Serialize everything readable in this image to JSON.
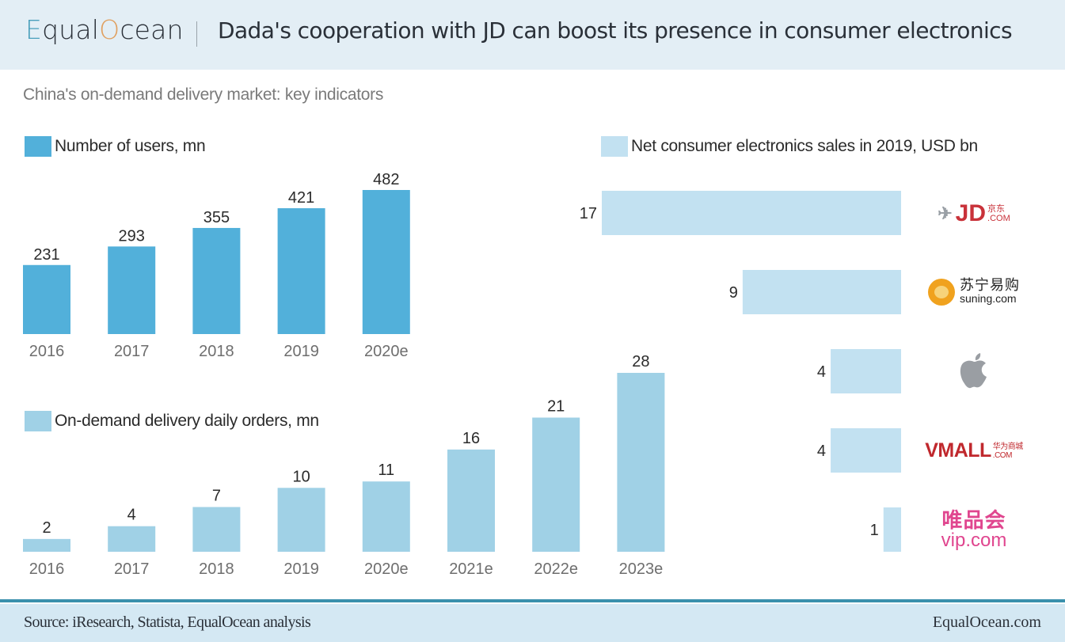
{
  "header": {
    "logo_prefix": "E",
    "logo_mid": "qual",
    "logo_o": "O",
    "logo_suffix": "cean",
    "title": "Dada's cooperation with JD can boost its presence in consumer electronics"
  },
  "subtitle": "China's on-demand delivery market: key indicators",
  "colors": {
    "users_bar": "#52b0da",
    "orders_bar": "#a0d1e6",
    "sales_bar": "#c2e1f1",
    "header_bg": "#e3eef5",
    "footer_bg": "#d4e8f3",
    "footer_line": "#3a90ac"
  },
  "chart_data": [
    {
      "type": "bar",
      "title": "Number of users, mn",
      "categories": [
        "2016",
        "2017",
        "2018",
        "2019",
        "2020e"
      ],
      "values": [
        231,
        293,
        355,
        421,
        482
      ],
      "xlabel": "",
      "ylabel": "",
      "legend": "top-left",
      "grid": false
    },
    {
      "type": "bar",
      "title": "On-demand delivery daily orders, mn",
      "categories": [
        "2016",
        "2017",
        "2018",
        "2019",
        "2020e",
        "2021e",
        "2022e",
        "2023e"
      ],
      "values": [
        2,
        4,
        7,
        10,
        11,
        16,
        21,
        28
      ],
      "xlabel": "",
      "ylabel": "",
      "legend": "left",
      "grid": false
    },
    {
      "type": "bar",
      "orientation": "horizontal",
      "title": "Net consumer electronics sales in 2019, USD bn",
      "categories": [
        "JD.com",
        "Suning.com",
        "Apple",
        "VMALL",
        "vip.com"
      ],
      "values": [
        17,
        9,
        4,
        4,
        1
      ],
      "xlabel": "",
      "ylabel": "",
      "legend": "top",
      "grid": false
    }
  ],
  "brands": {
    "jd": {
      "main": "JD",
      "cn": "京东",
      "com": ".COM"
    },
    "suning": {
      "cn": "苏宁易购",
      "en": "suning.com"
    },
    "apple": {
      "glyph": ""
    },
    "vmall": {
      "main": "VMALL",
      "cn": "华为商城",
      "com": ".COM"
    },
    "vip": {
      "cn": "唯品会",
      "en": "vip.com"
    }
  },
  "footer": {
    "source": "Source: iResearch, Statista, EqualOcean analysis",
    "site": "EqualOcean.com"
  }
}
